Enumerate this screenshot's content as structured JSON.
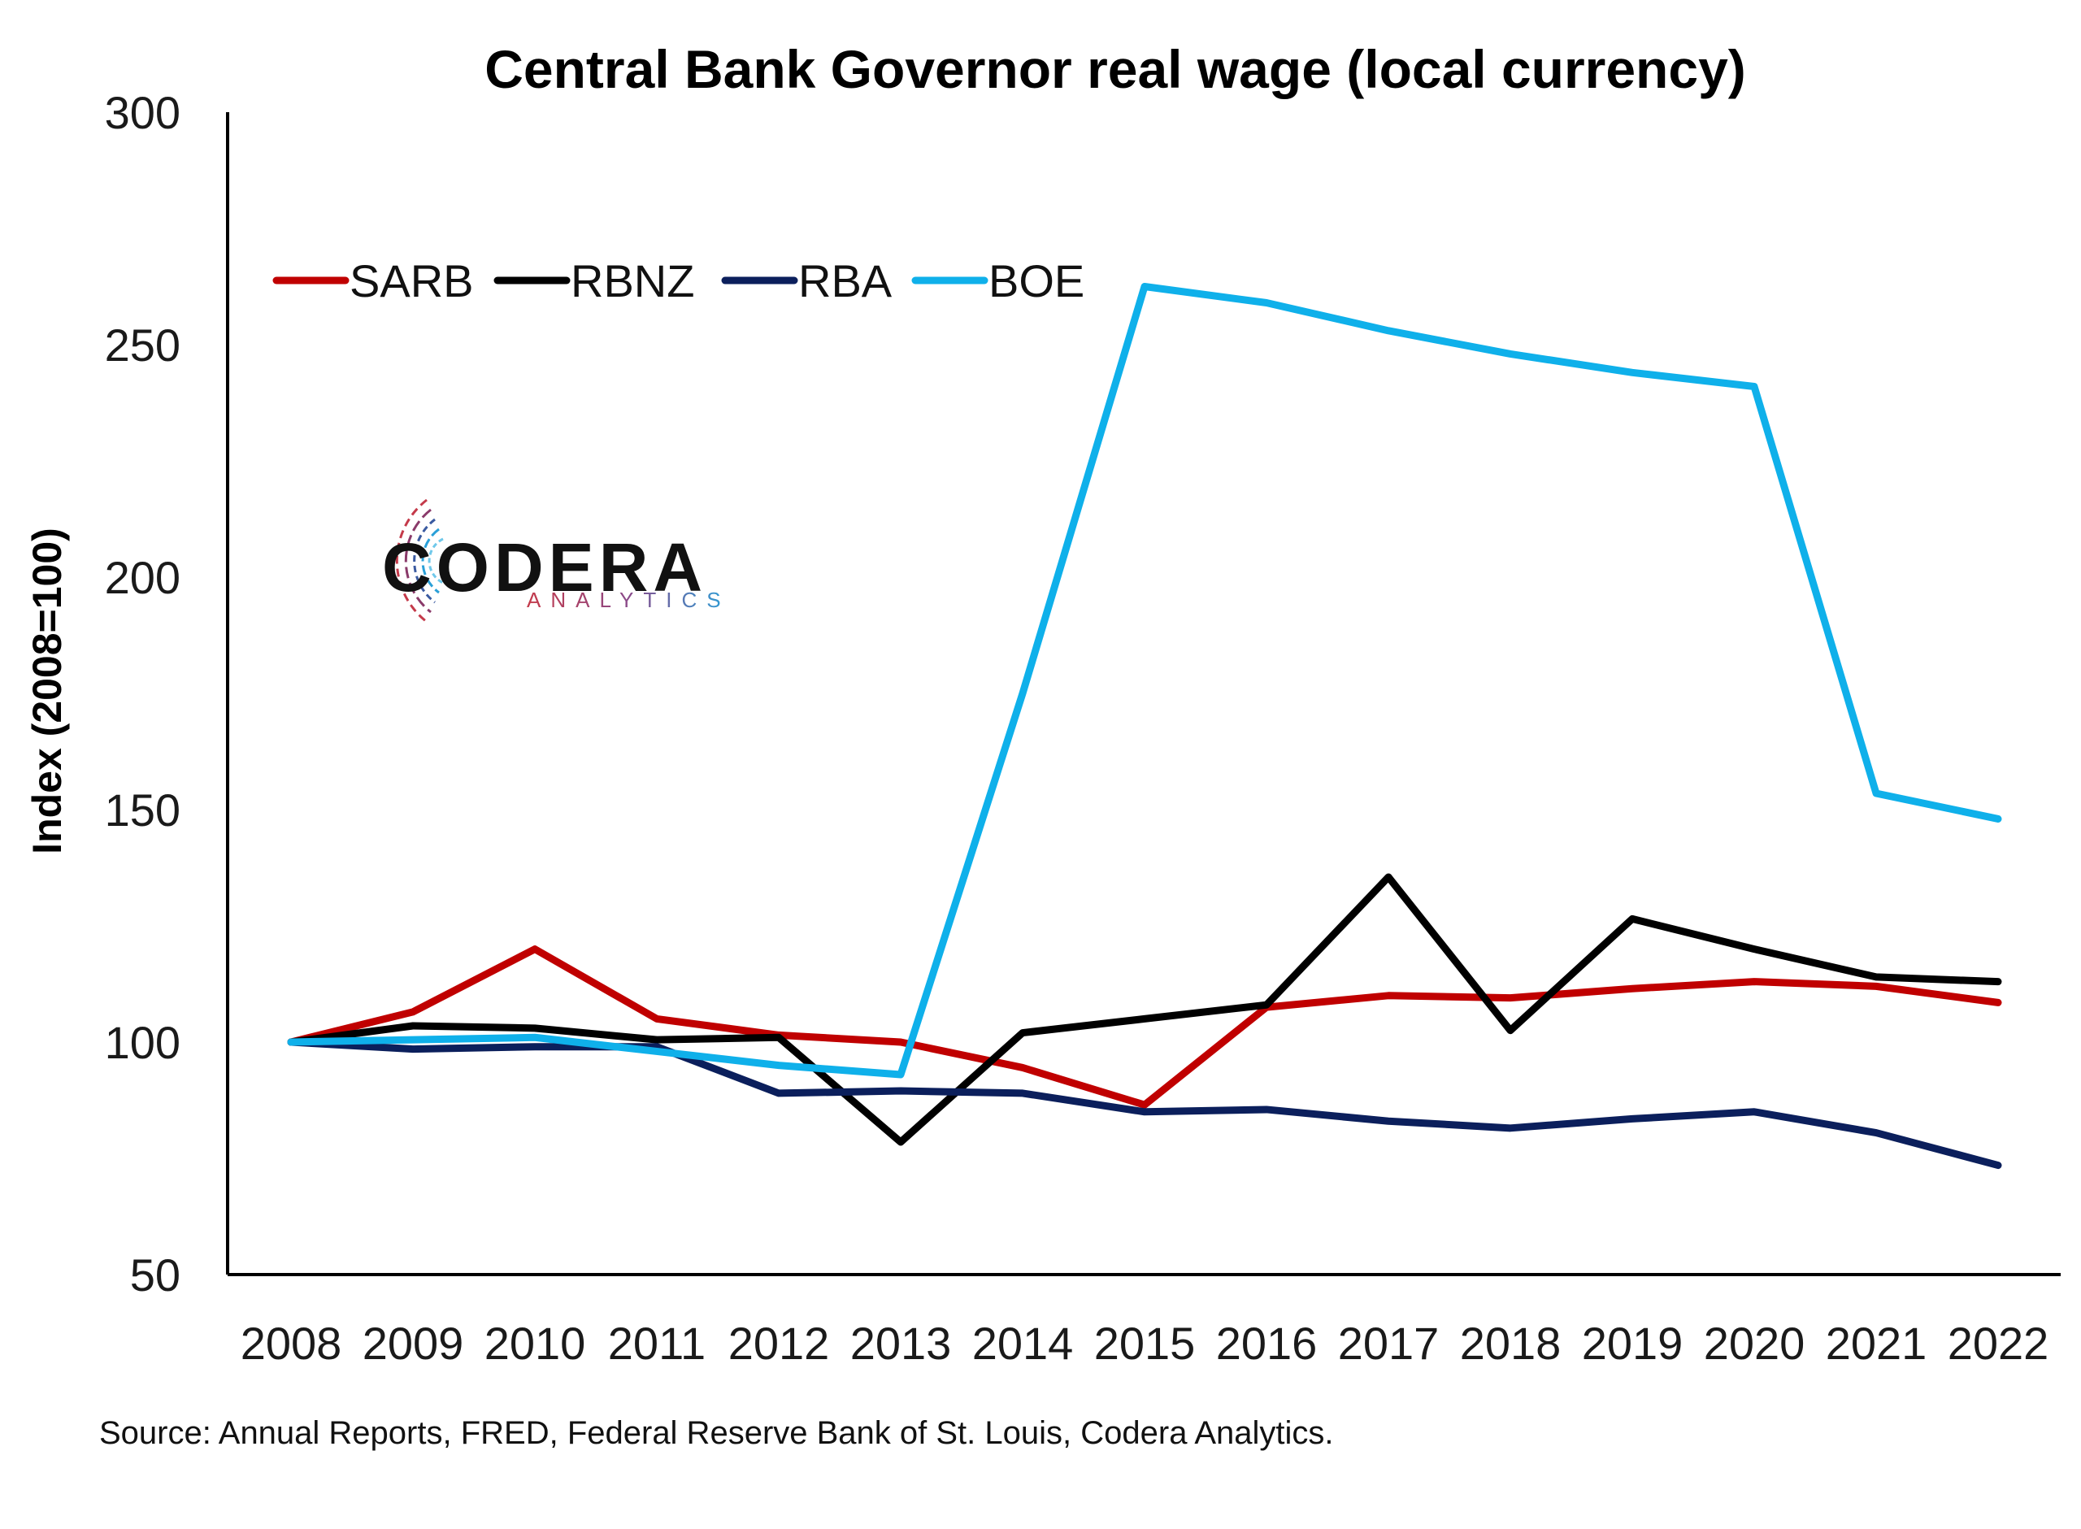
{
  "chart_data": {
    "type": "line",
    "title": "Central Bank Governor real wage (local currency)",
    "ylabel": "Index (2008=100)",
    "xlabel": "",
    "ylim": [
      50,
      300
    ],
    "yticks": [
      50,
      100,
      150,
      200,
      250,
      300
    ],
    "categories": [
      "2008",
      "2009",
      "2010",
      "2011",
      "2012",
      "2013",
      "2014",
      "2015",
      "2016",
      "2017",
      "2018",
      "2019",
      "2020",
      "2021",
      "2022"
    ],
    "series": [
      {
        "name": "SARB",
        "color": "#c00000",
        "values": [
          100,
          106.5,
          120,
          105,
          101.5,
          100,
          94.5,
          86.5,
          107.5,
          110,
          109.5,
          111.5,
          113,
          112,
          108.5
        ]
      },
      {
        "name": "RBNZ",
        "color": "#000000",
        "values": [
          100,
          103.5,
          103,
          100.5,
          101,
          78.5,
          102,
          105,
          108,
          135.5,
          102.5,
          126.5,
          120,
          114,
          113
        ]
      },
      {
        "name": "RBA",
        "color": "#0b1f5c",
        "values": [
          100,
          98.5,
          99,
          99,
          89,
          89.5,
          89,
          85,
          85.5,
          83,
          81.5,
          83.5,
          85,
          80.5,
          73.5
        ]
      },
      {
        "name": "BOE",
        "color": "#0fb0ea",
        "values": [
          100,
          100.5,
          101,
          98,
          95,
          93,
          175,
          262.5,
          259,
          253,
          248,
          244,
          241,
          153.5,
          148
        ]
      }
    ],
    "legend_position": "top-left",
    "grid": false
  },
  "logo": {
    "main": "CODERA",
    "sub": "ANALYTICS"
  },
  "source": "Source: Annual Reports, FRED, Federal Reserve Bank of St. Louis, Codera Analytics."
}
